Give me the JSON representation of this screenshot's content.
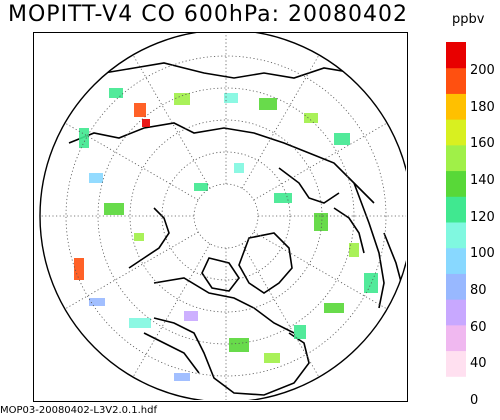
{
  "title": "MOPITT-V4 CO 600hPa: 20080402",
  "colorbar": {
    "units": "ppbv",
    "colors": [
      "#ffffff",
      "#ffe0f0",
      "#f0b8f0",
      "#c8a8ff",
      "#98b8ff",
      "#88d8ff",
      "#80f8e0",
      "#40e890",
      "#58d838",
      "#a0f048",
      "#d8f020",
      "#ffc000",
      "#ff5010",
      "#e80000"
    ],
    "labels": [
      "0",
      "40",
      "60",
      "80",
      "100",
      "120",
      "140",
      "160",
      "180",
      "200"
    ]
  },
  "footer": "MOP03-20080402-L3V2.0.1.hdf"
}
